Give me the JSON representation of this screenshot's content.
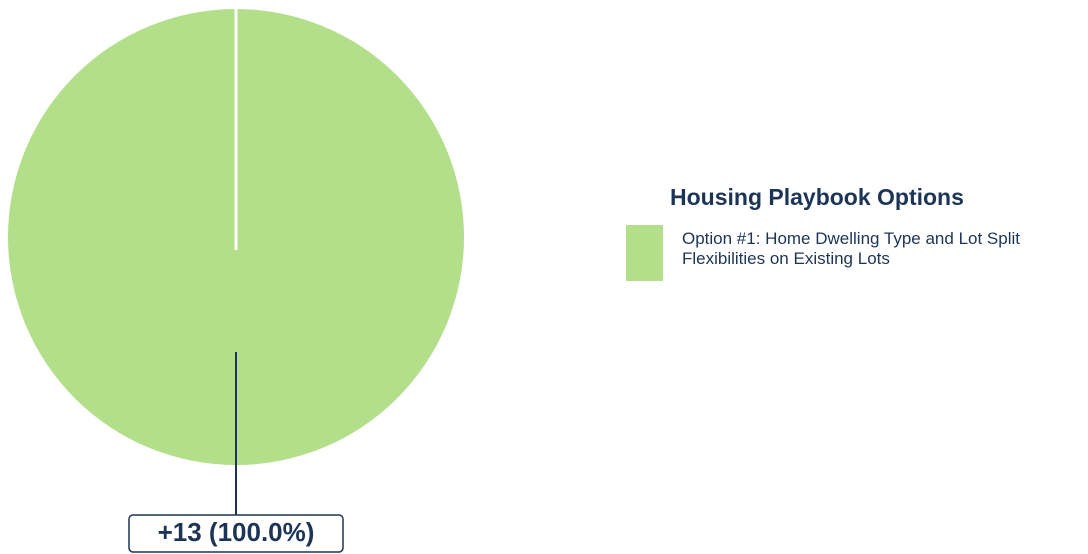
{
  "chart_data": {
    "type": "pie",
    "legend_title": "Housing Playbook Options",
    "categories": [
      "Option #1: Home Dwelling Type and Lot Split Flexibilities on Existing Lots"
    ],
    "values": [
      13
    ],
    "value_labels": [
      "+13 (100.0%)"
    ],
    "colors": [
      "#b3df8a"
    ],
    "legend": "right"
  }
}
